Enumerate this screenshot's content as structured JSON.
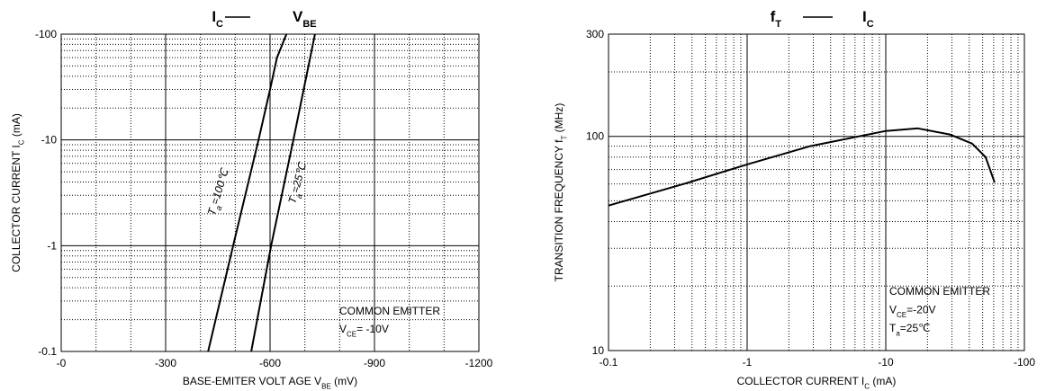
{
  "chart_data": [
    {
      "type": "line",
      "title": [
        [
          "I",
          "C"
        ],
        [
          "V",
          "BE"
        ]
      ],
      "x_label": [
        "BASE-EMITER VOLT AGE  V",
        "BE",
        "  (mV)"
      ],
      "y_label": [
        "COLLECTOR CURRENT   I",
        "C",
        " (mA)"
      ],
      "xlim": [
        0,
        -1200
      ],
      "xticks": [
        {
          "value": 0,
          "label": "-0"
        },
        -300,
        -600,
        -900,
        -1200
      ],
      "ylim": [
        -0.1,
        -100
      ],
      "yticks": [
        -0.1,
        -1,
        -10,
        -100
      ],
      "ylog": true,
      "grid": true,
      "series": [
        {
          "name": [
            "T",
            "a",
            "=100℃"
          ],
          "color": "#000000",
          "x": [
            -422,
            -494,
            -567,
            -600,
            -620,
            -647
          ],
          "values": [
            -0.1,
            -1,
            -10,
            -30,
            -60,
            -100
          ]
        },
        {
          "name": [
            "T",
            "a",
            "=25℃"
          ],
          "color": "#000000",
          "x": [
            -546,
            -603,
            -667,
            -729
          ],
          "values": [
            -0.1,
            -1,
            -10,
            -100
          ]
        }
      ],
      "annotations": [
        [
          "COMMON EMITTER"
        ],
        [
          "V",
          "CE",
          "= -10V"
        ]
      ]
    },
    {
      "type": "line",
      "title": [
        [
          "f",
          "T"
        ],
        [
          "I",
          "C"
        ]
      ],
      "x_label": [
        "COLLECTOR CURRENT I",
        "C",
        " (mA)"
      ],
      "y_label": [
        "TRANSITION FREQUENCY f",
        "T",
        " (MHz)"
      ],
      "xlim": [
        -0.1,
        -100
      ],
      "xticks": [
        -0.1,
        -1,
        -10,
        -100
      ],
      "xlog": true,
      "ylim": [
        10,
        300
      ],
      "yticks": [
        10,
        100,
        300
      ],
      "ylog": true,
      "grid": true,
      "series": [
        {
          "color": "#000000",
          "x": [
            -0.1,
            -0.35,
            -1,
            -2.85,
            -10,
            -17,
            -29,
            -42,
            -52.5,
            -61
          ],
          "values": [
            47.5,
            60,
            74,
            90,
            106,
            109,
            102,
            92.5,
            80,
            61
          ]
        }
      ],
      "annotations": [
        [
          "COMMON EMITTER"
        ],
        [
          "V",
          "CE",
          "=-20V"
        ],
        [
          "T",
          "a",
          "=25℃"
        ]
      ]
    }
  ]
}
